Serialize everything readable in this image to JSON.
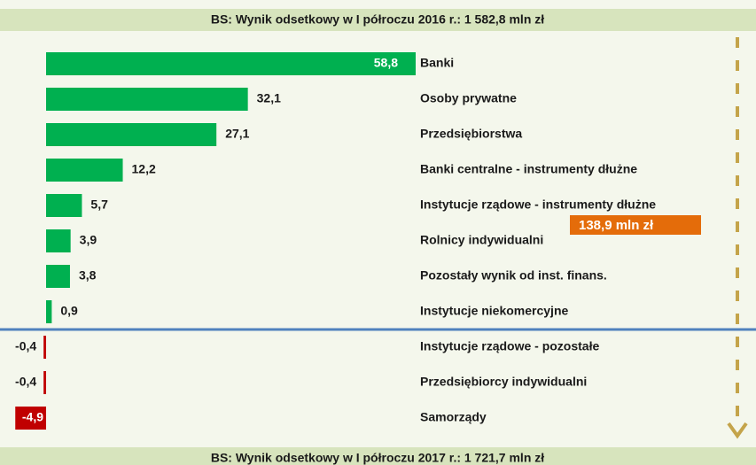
{
  "chart_data": {
    "type": "bar",
    "title": "BS: Wynik odsetkowy w I półroczu 2016 r.: 1 582,8 mln zł",
    "footer": "BS: Wynik odsetkowy w I półroczu 2017 r.: 1 721,7 mln zł",
    "categories": [
      "Banki",
      "Osoby prywatne",
      "Przedsiębiorstwa",
      "Banki centralne - instrumenty dłużne",
      "Instytucje rządowe - instrumenty dłużne",
      "Rolnicy indywidualni",
      "Pozostały wynik od inst. finans.",
      "Instytucje niekomercyjne",
      "Instytucje rządowe - pozostałe",
      "Przedsiębiorcy indywidualni",
      "Samorządy"
    ],
    "values": [
      58.8,
      32.1,
      27.1,
      12.2,
      5.7,
      3.9,
      3.8,
      0.9,
      -0.4,
      -0.4,
      -4.9
    ],
    "value_labels": [
      "58,8",
      "32,1",
      "27,1",
      "12,2",
      "5,7",
      "3,9",
      "3,8",
      "0,9",
      "-0,4",
      "-0,4",
      "-4,9"
    ],
    "color": "#00b050",
    "negative_color": "#c00000",
    "annotation": "138,9 mln zł",
    "annotation_color": "#e46c0a"
  }
}
